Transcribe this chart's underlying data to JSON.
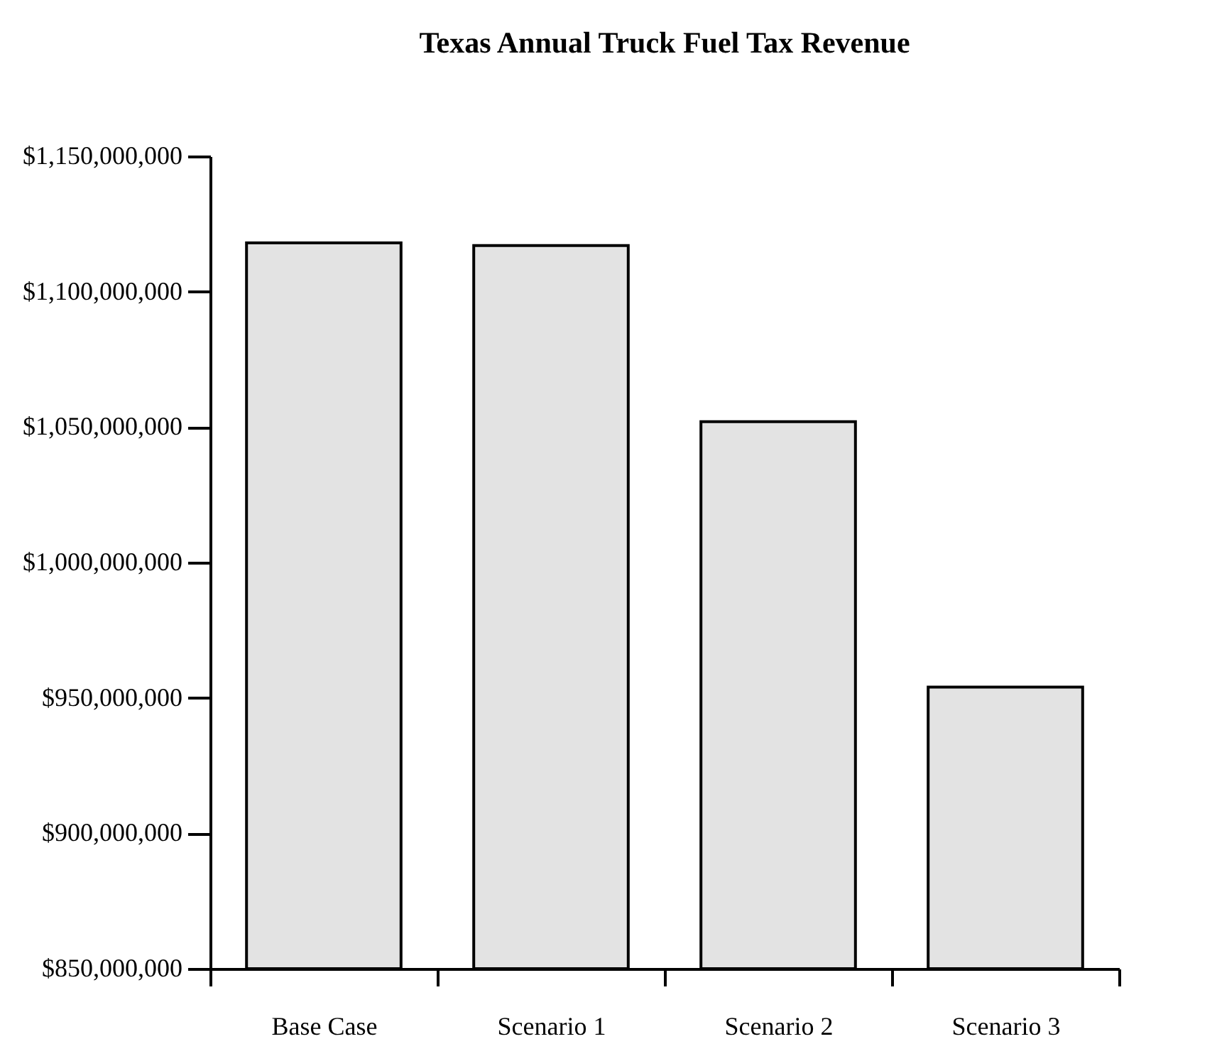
{
  "chart_data": {
    "type": "bar",
    "title": "Texas Annual Truck Fuel Tax Revenue",
    "categories": [
      "Base Case",
      "Scenario 1",
      "Scenario 2",
      "Scenario 3"
    ],
    "values": [
      1118000000,
      1117000000,
      1052000000,
      954000000
    ],
    "color": "#e3e3e3",
    "ylim": [
      850000000,
      1150000000
    ],
    "yticks": [
      {
        "value": 850000000,
        "label": "$850,000,000"
      },
      {
        "value": 900000000,
        "label": "$900,000,000"
      },
      {
        "value": 950000000,
        "label": "$950,000,000"
      },
      {
        "value": 1000000000,
        "label": "$1,000,000,000"
      },
      {
        "value": 1050000000,
        "label": "$1,050,000,000"
      },
      {
        "value": 1100000000,
        "label": "$1,100,000,000"
      },
      {
        "value": 1150000000,
        "label": "$1,150,000,000"
      }
    ],
    "grid": false
  }
}
